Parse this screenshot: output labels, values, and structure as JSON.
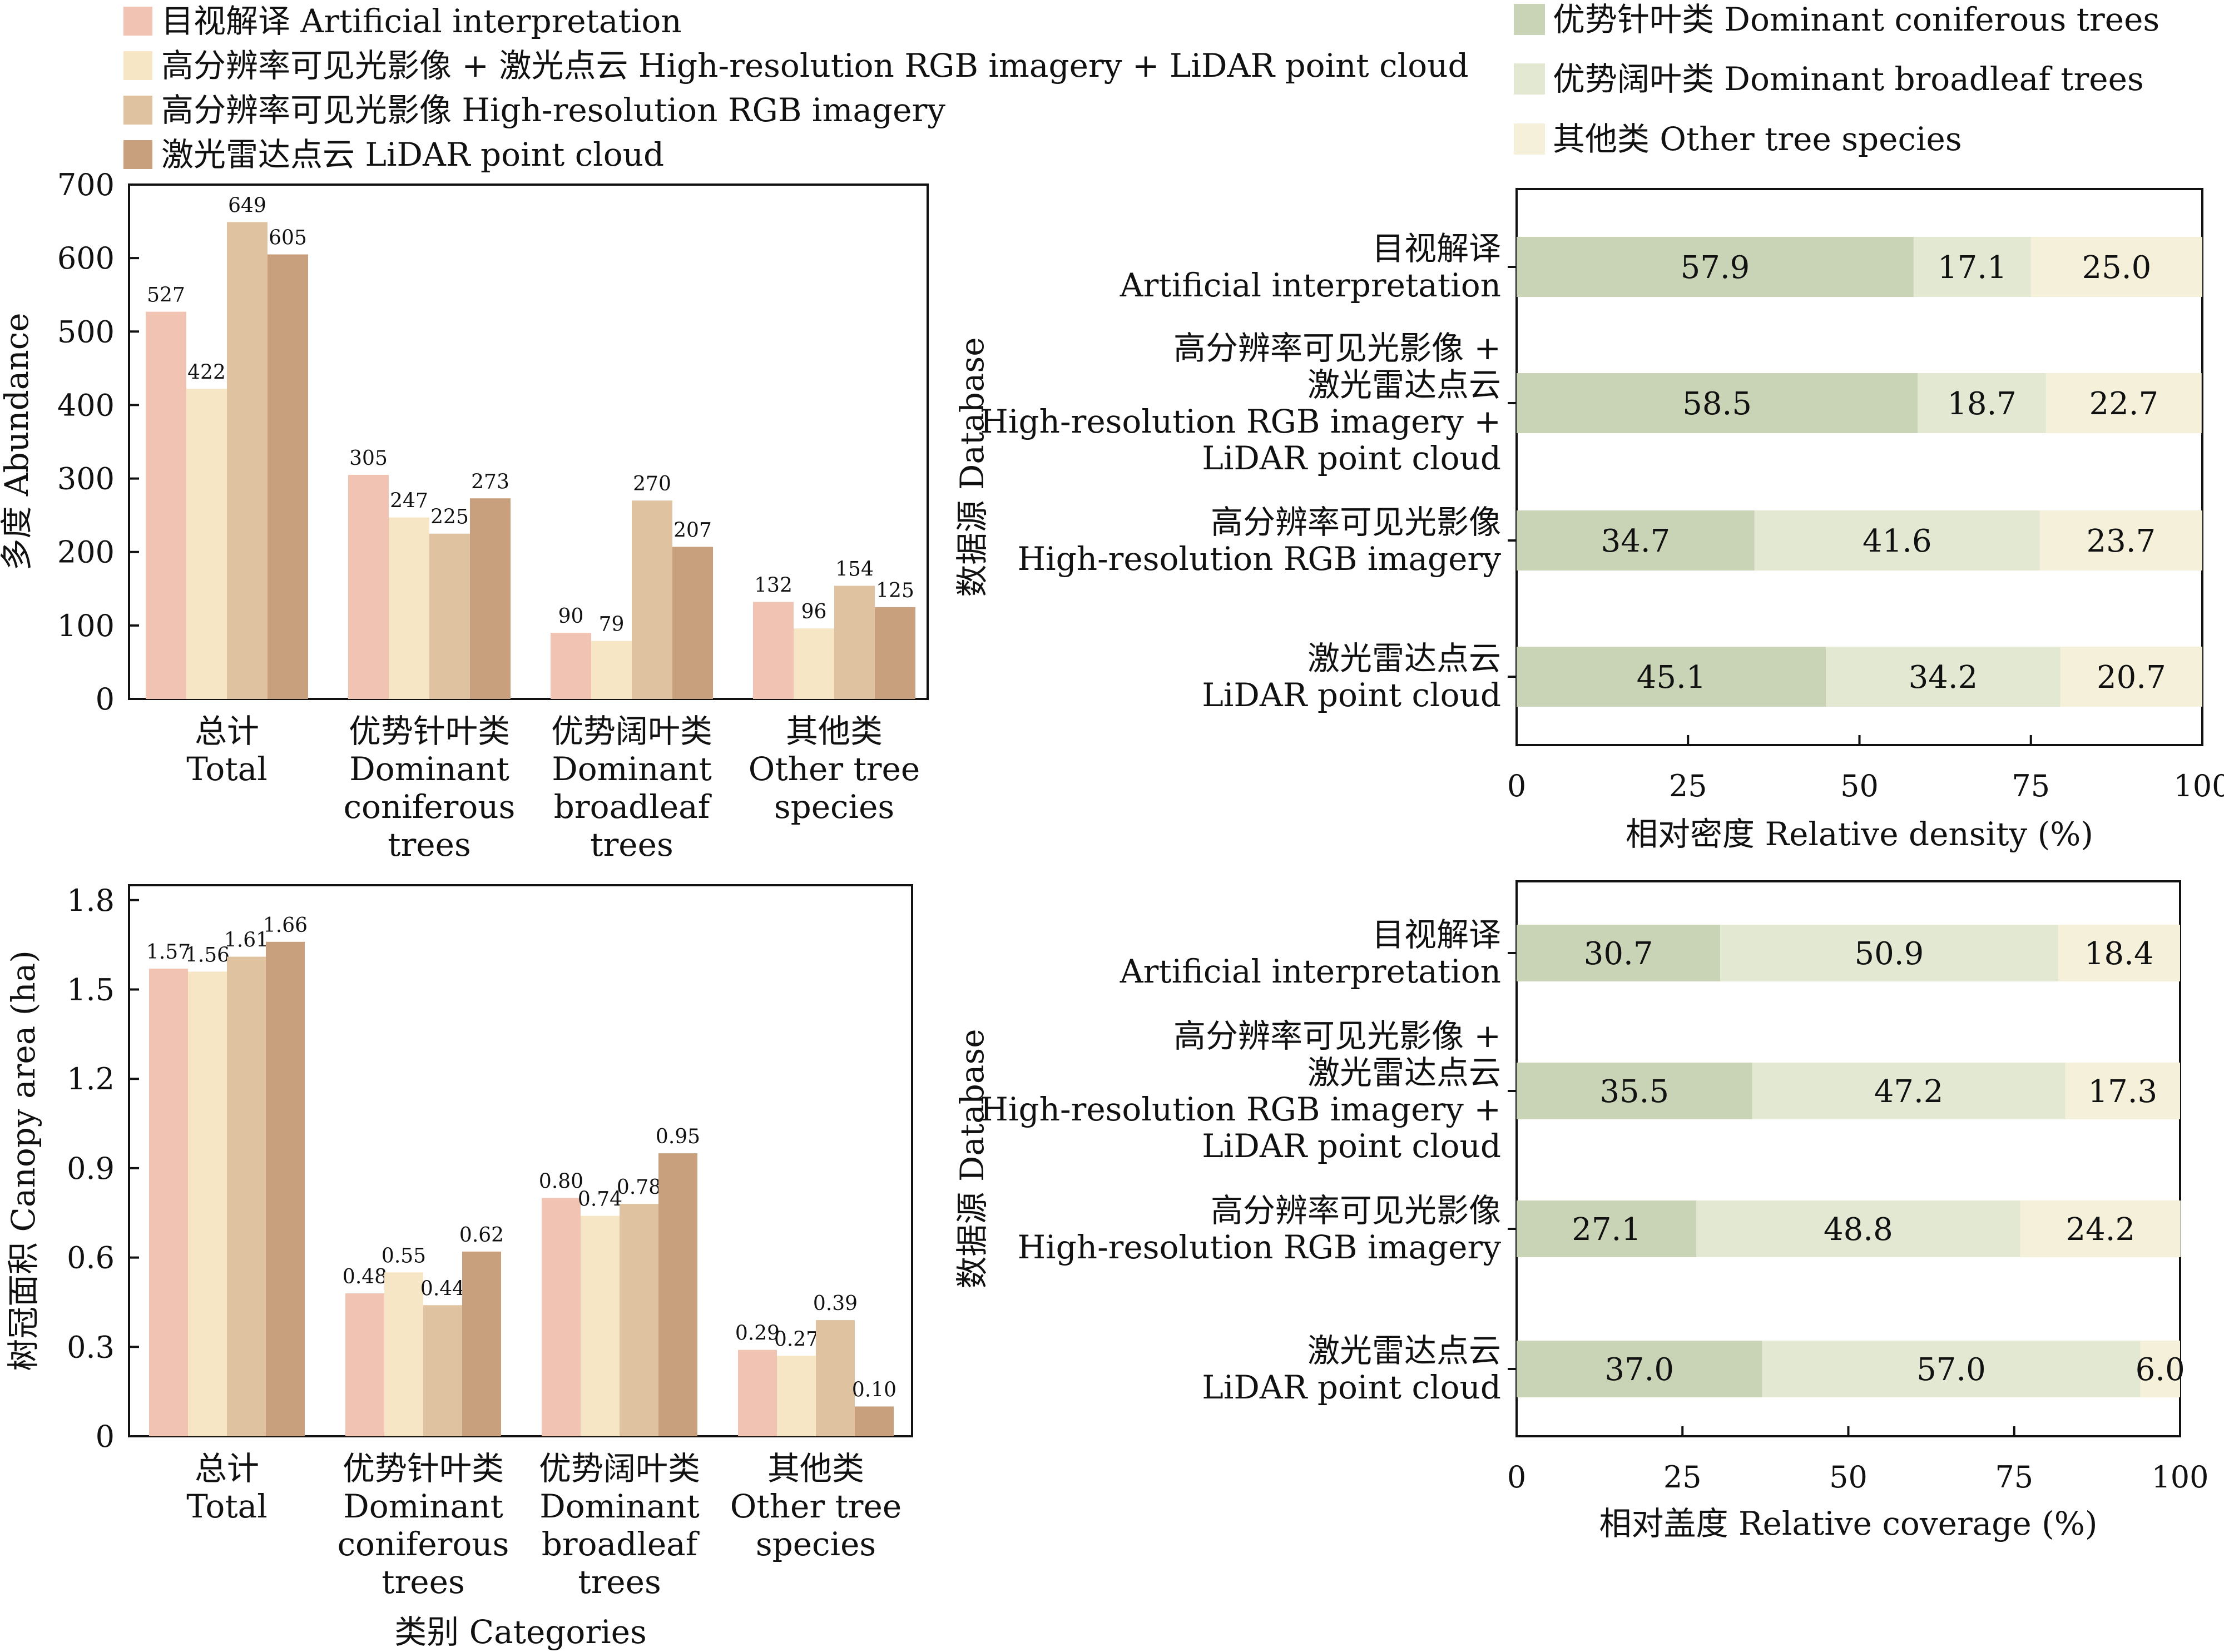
{
  "legend_left": [
    "目视解译 Artificial interpretation",
    "高分辨率可见光影像 + 激光点云 High-resolution RGB imagery + LiDAR point cloud",
    "高分辨率可见光影像 High-resolution RGB imagery",
    "激光雷达点云 LiDAR point cloud"
  ],
  "legend_right": [
    "优势针叶类 Dominant coniferous trees",
    "优势阔叶类 Dominant broadleaf trees",
    "其他类 Other tree species"
  ],
  "colors": {
    "methods": [
      "#f1c3b3",
      "#f6e6c6",
      "#dfc29f",
      "#c8a07d"
    ],
    "types": [
      "#c9d3b6",
      "#e3e8d3",
      "#f4f0da"
    ]
  },
  "categories_left": [
    [
      "总计",
      "Total"
    ],
    [
      "优势针叶类",
      "Dominant",
      "coniferous",
      "trees"
    ],
    [
      "优势阔叶类",
      "Dominant",
      "broadleaf",
      "trees"
    ],
    [
      "其他类",
      "Other tree",
      "species"
    ]
  ],
  "categories_right": [
    [
      "目视解译",
      "Artificial interpretation"
    ],
    [
      "高分辨率可见光影像 +",
      "激光雷达点云",
      "High-resolution RGB imagery +",
      "LiDAR point cloud"
    ],
    [
      "高分辨率可见光影像",
      "High-resolution RGB imagery"
    ],
    [
      "激光雷达点云",
      "LiDAR point cloud"
    ]
  ],
  "chart_data": [
    {
      "type": "bar",
      "ylabel": "多度 Abundance",
      "ylim": [
        0,
        700
      ],
      "yticks": [
        0,
        100,
        200,
        300,
        400,
        500,
        600,
        700
      ],
      "ytick_labels": [
        "0",
        "100",
        "200",
        "300",
        "400",
        "500",
        "600",
        "700"
      ],
      "categories": [
        "总计 Total",
        "优势针叶类 Dominant coniferous trees",
        "优势阔叶类 Dominant broadleaf trees",
        "其他类 Other tree species"
      ],
      "series": [
        {
          "name": "目视解译 Artificial interpretation",
          "values": [
            527,
            305,
            90,
            132
          ],
          "labels": [
            "527",
            "305",
            "90",
            "132"
          ]
        },
        {
          "name": "高分辨率可见光影像 + 激光点云 High-resolution RGB imagery + LiDAR point cloud",
          "values": [
            422,
            247,
            79,
            96
          ],
          "labels": [
            "422",
            "247",
            "79",
            "96"
          ]
        },
        {
          "name": "高分辨率可见光影像 High-resolution RGB imagery",
          "values": [
            649,
            225,
            270,
            154
          ],
          "labels": [
            "649",
            "225",
            "270",
            "154"
          ]
        },
        {
          "name": "激光雷达点云 LiDAR point cloud",
          "values": [
            605,
            273,
            207,
            125
          ],
          "labels": [
            "605",
            "273",
            "207",
            "125"
          ]
        }
      ]
    },
    {
      "type": "bar",
      "ylabel": "树冠面积 Canopy area (ha)",
      "xlabel": "类别 Categories",
      "ylim": [
        0,
        1.85
      ],
      "yticks": [
        0,
        0.3,
        0.6,
        0.9,
        1.2,
        1.5,
        1.8
      ],
      "ytick_labels": [
        "0",
        "0.3",
        "0.6",
        "0.9",
        "1.2",
        "1.5",
        "1.8"
      ],
      "categories": [
        "总计 Total",
        "优势针叶类 Dominant coniferous trees",
        "优势阔叶类 Dominant broadleaf trees",
        "其他类 Other tree species"
      ],
      "series": [
        {
          "name": "目视解译 Artificial interpretation",
          "values": [
            1.57,
            0.48,
            0.8,
            0.29
          ],
          "labels": [
            "1.57",
            "0.48",
            "0.80",
            "0.29"
          ]
        },
        {
          "name": "高分辨率可见光影像 + 激光点云 High-resolution RGB imagery + LiDAR point cloud",
          "values": [
            1.56,
            0.55,
            0.74,
            0.27
          ],
          "labels": [
            "1.56",
            "0.55",
            "0.74",
            "0.27"
          ]
        },
        {
          "name": "高分辨率可见光影像 High-resolution RGB imagery",
          "values": [
            1.61,
            0.44,
            0.78,
            0.39
          ],
          "labels": [
            "1.61",
            "0.44",
            "0.78",
            "0.39"
          ]
        },
        {
          "name": "激光雷达点云 LiDAR point cloud",
          "values": [
            1.66,
            0.62,
            0.95,
            0.1
          ],
          "labels": [
            "1.66",
            "0.62",
            "0.95",
            "0.10"
          ]
        }
      ]
    },
    {
      "type": "bar",
      "stacked": true,
      "orientation": "horizontal",
      "xlabel": "相对密度 Relative density (%)",
      "ylabel": "数据源 Database",
      "xlim": [
        0,
        100
      ],
      "xticks": [
        0,
        25,
        50,
        75,
        100
      ],
      "xtick_labels": [
        "0",
        "25",
        "50",
        "75",
        "100"
      ],
      "categories": [
        "目视解译 Artificial interpretation",
        "高分辨率可见光影像 + 激光雷达点云 High-resolution RGB imagery + LiDAR point cloud",
        "高分辨率可见光影像 High-resolution RGB imagery",
        "激光雷达点云 LiDAR point cloud"
      ],
      "series": [
        {
          "name": "优势针叶类 Dominant coniferous trees",
          "values": [
            57.9,
            58.5,
            34.7,
            45.1
          ],
          "labels": [
            "57.9",
            "58.5",
            "34.7",
            "45.1"
          ]
        },
        {
          "name": "优势阔叶类 Dominant broadleaf trees",
          "values": [
            17.1,
            18.7,
            41.6,
            34.2
          ],
          "labels": [
            "17.1",
            "18.7",
            "41.6",
            "34.2"
          ]
        },
        {
          "name": "其他类 Other tree species",
          "values": [
            25.0,
            22.7,
            23.7,
            20.7
          ],
          "labels": [
            "25.0",
            "22.7",
            "23.7",
            "20.7"
          ]
        }
      ]
    },
    {
      "type": "bar",
      "stacked": true,
      "orientation": "horizontal",
      "xlabel": "相对盖度 Relative coverage (%)",
      "ylabel": "数据源 Database",
      "xlim": [
        0,
        100
      ],
      "xticks": [
        0,
        25,
        50,
        75,
        100
      ],
      "xtick_labels": [
        "0",
        "25",
        "50",
        "75",
        "100"
      ],
      "categories": [
        "目视解译 Artificial interpretation",
        "高分辨率可见光影像 + 激光雷达点云 High-resolution RGB imagery + LiDAR point cloud",
        "高分辨率可见光影像 High-resolution RGB imagery",
        "激光雷达点云 LiDAR point cloud"
      ],
      "series": [
        {
          "name": "优势针叶类 Dominant coniferous trees",
          "values": [
            30.7,
            35.5,
            27.1,
            37.0
          ],
          "labels": [
            "30.7",
            "35.5",
            "27.1",
            "37.0"
          ]
        },
        {
          "name": "优势阔叶类 Dominant broadleaf trees",
          "values": [
            50.9,
            47.2,
            48.8,
            57.0
          ],
          "labels": [
            "50.9",
            "47.2",
            "48.8",
            "57.0"
          ]
        },
        {
          "name": "其他类 Other tree species",
          "values": [
            18.4,
            17.3,
            24.2,
            6.0
          ],
          "labels": [
            "18.4",
            "17.3",
            "24.2",
            "6.0"
          ]
        }
      ]
    }
  ]
}
